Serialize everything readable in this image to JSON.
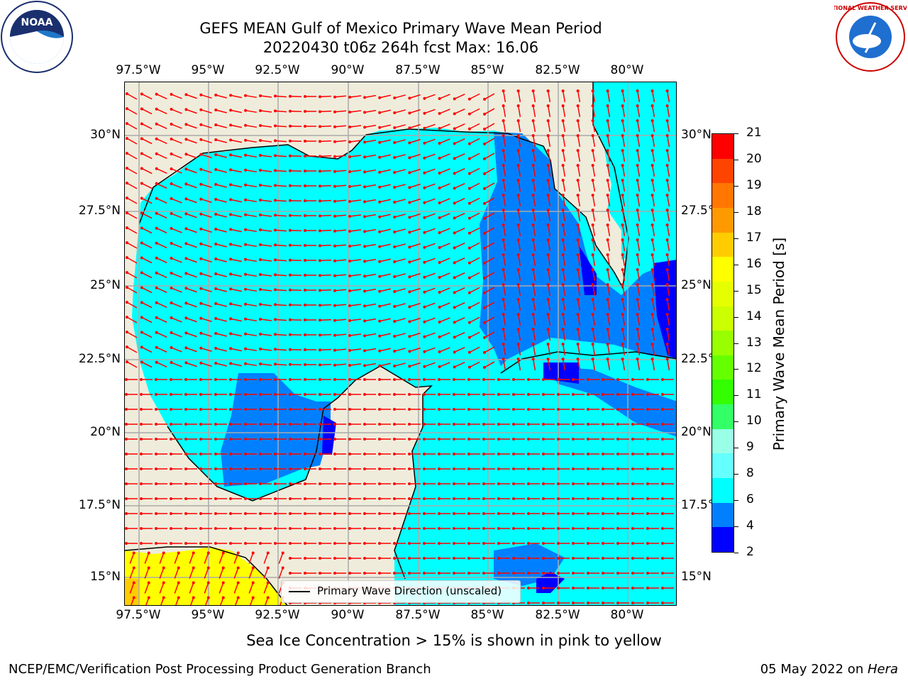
{
  "title": {
    "line1": "GEFS MEAN Gulf of Mexico Primary Wave Mean Period",
    "line2": "20220430 t06z 264h fcst   Max: 16.06"
  },
  "map": {
    "lon_labels": [
      "97.5°W",
      "95°W",
      "92.5°W",
      "90°W",
      "87.5°W",
      "85°W",
      "82.5°W",
      "80°W"
    ],
    "lat_labels_left": [
      "30°N",
      "27.5°N",
      "25°N",
      "22.5°N",
      "20°N",
      "17.5°N",
      "15°N"
    ],
    "lat_labels_right": [
      "30°N",
      "27.5°N",
      "25°N",
      "22.5°N",
      "20°N",
      "17.5°N",
      "15°N"
    ],
    "legend": "Primary Wave Direction (unscaled)",
    "colors": {
      "land": "#efecdb",
      "ocean_6_8": "#00ffff",
      "ocean_4_6": "#0080ff",
      "ocean_2_4": "#0000ff",
      "ice": "#ffff00",
      "arrow": "#ff0000"
    }
  },
  "colorbar": {
    "label": "Primary Wave Mean Period [s]",
    "ticks": [
      "21",
      "20",
      "19",
      "18",
      "17",
      "16",
      "15",
      "14",
      "13",
      "12",
      "11",
      "10",
      "9",
      "8",
      "6",
      "4",
      "2"
    ],
    "colors": [
      "#0000ff",
      "#0080ff",
      "#00ffff",
      "#66ffff",
      "#99ffe6",
      "#33ff66",
      "#33ff00",
      "#66ff00",
      "#99ff00",
      "#ccff00",
      "#e6ff00",
      "#ffff00",
      "#ffcc00",
      "#ff9900",
      "#ff7700",
      "#ff4400",
      "#ff0000"
    ]
  },
  "logos": {
    "left": "NOAA",
    "right": "NATIONAL WEATHER SERVICE"
  },
  "footer": {
    "caption": "Sea Ice Concentration > 15% is shown in pink to yellow",
    "left": "NCEP/EMC/Verification Post Processing Product Generation Branch",
    "date": "05 May 2022 on ",
    "machine": "Hera"
  }
}
